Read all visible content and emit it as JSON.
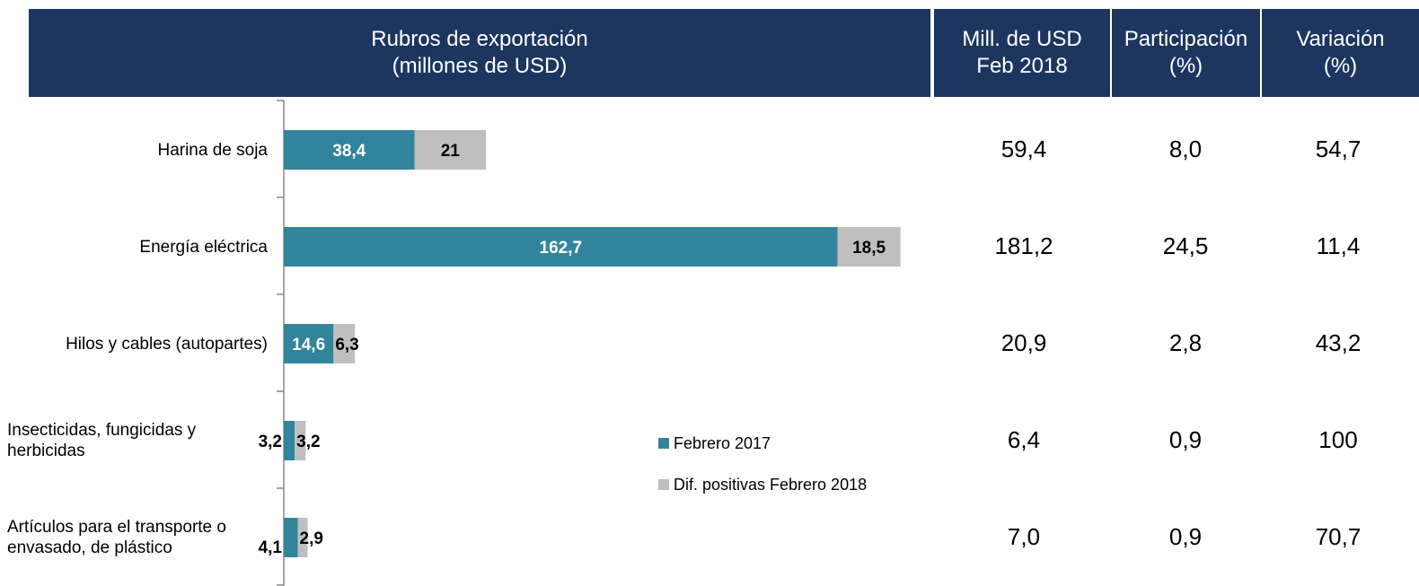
{
  "header": {
    "chart_title": [
      "Rubros de exportación",
      "(millones de USD)"
    ],
    "columns": [
      [
        "Mill. de USD",
        "Feb 2018"
      ],
      [
        "Participación",
        "(%)"
      ],
      [
        "Variación",
        "(%)"
      ]
    ]
  },
  "chart_data": {
    "type": "bar",
    "orientation": "horizontal",
    "stacked": true,
    "categories": [
      "Harina de soja",
      "Energía eléctrica",
      "Hilos y cables (autopartes)",
      "Insecticidas, fungicidas y herbicidas",
      "Artículos para el transporte o envasado, de plástico"
    ],
    "series": [
      {
        "name": "Febrero 2017",
        "color": "#31849b",
        "values": [
          38.4,
          162.7,
          14.6,
          3.2,
          4.1
        ],
        "value_labels": [
          "38,4",
          "162,7",
          "14,6",
          "3,2",
          "4,1"
        ]
      },
      {
        "name": "Dif. positivas Febrero 2018",
        "color": "#bfbfbf",
        "values": [
          21,
          18.5,
          6.3,
          3.2,
          2.9
        ],
        "value_labels": [
          "21",
          "18,5",
          "6,3",
          "3,2",
          "2,9"
        ]
      }
    ],
    "xlim": [
      0,
      190
    ]
  },
  "table": {
    "rows": [
      [
        "59,4",
        "8,0",
        "54,7"
      ],
      [
        "181,2",
        "24,5",
        "11,4"
      ],
      [
        "20,9",
        "2,8",
        "43,2"
      ],
      [
        "6,4",
        "0,9",
        "100"
      ],
      [
        "7,0",
        "0,9",
        "70,7"
      ]
    ]
  }
}
